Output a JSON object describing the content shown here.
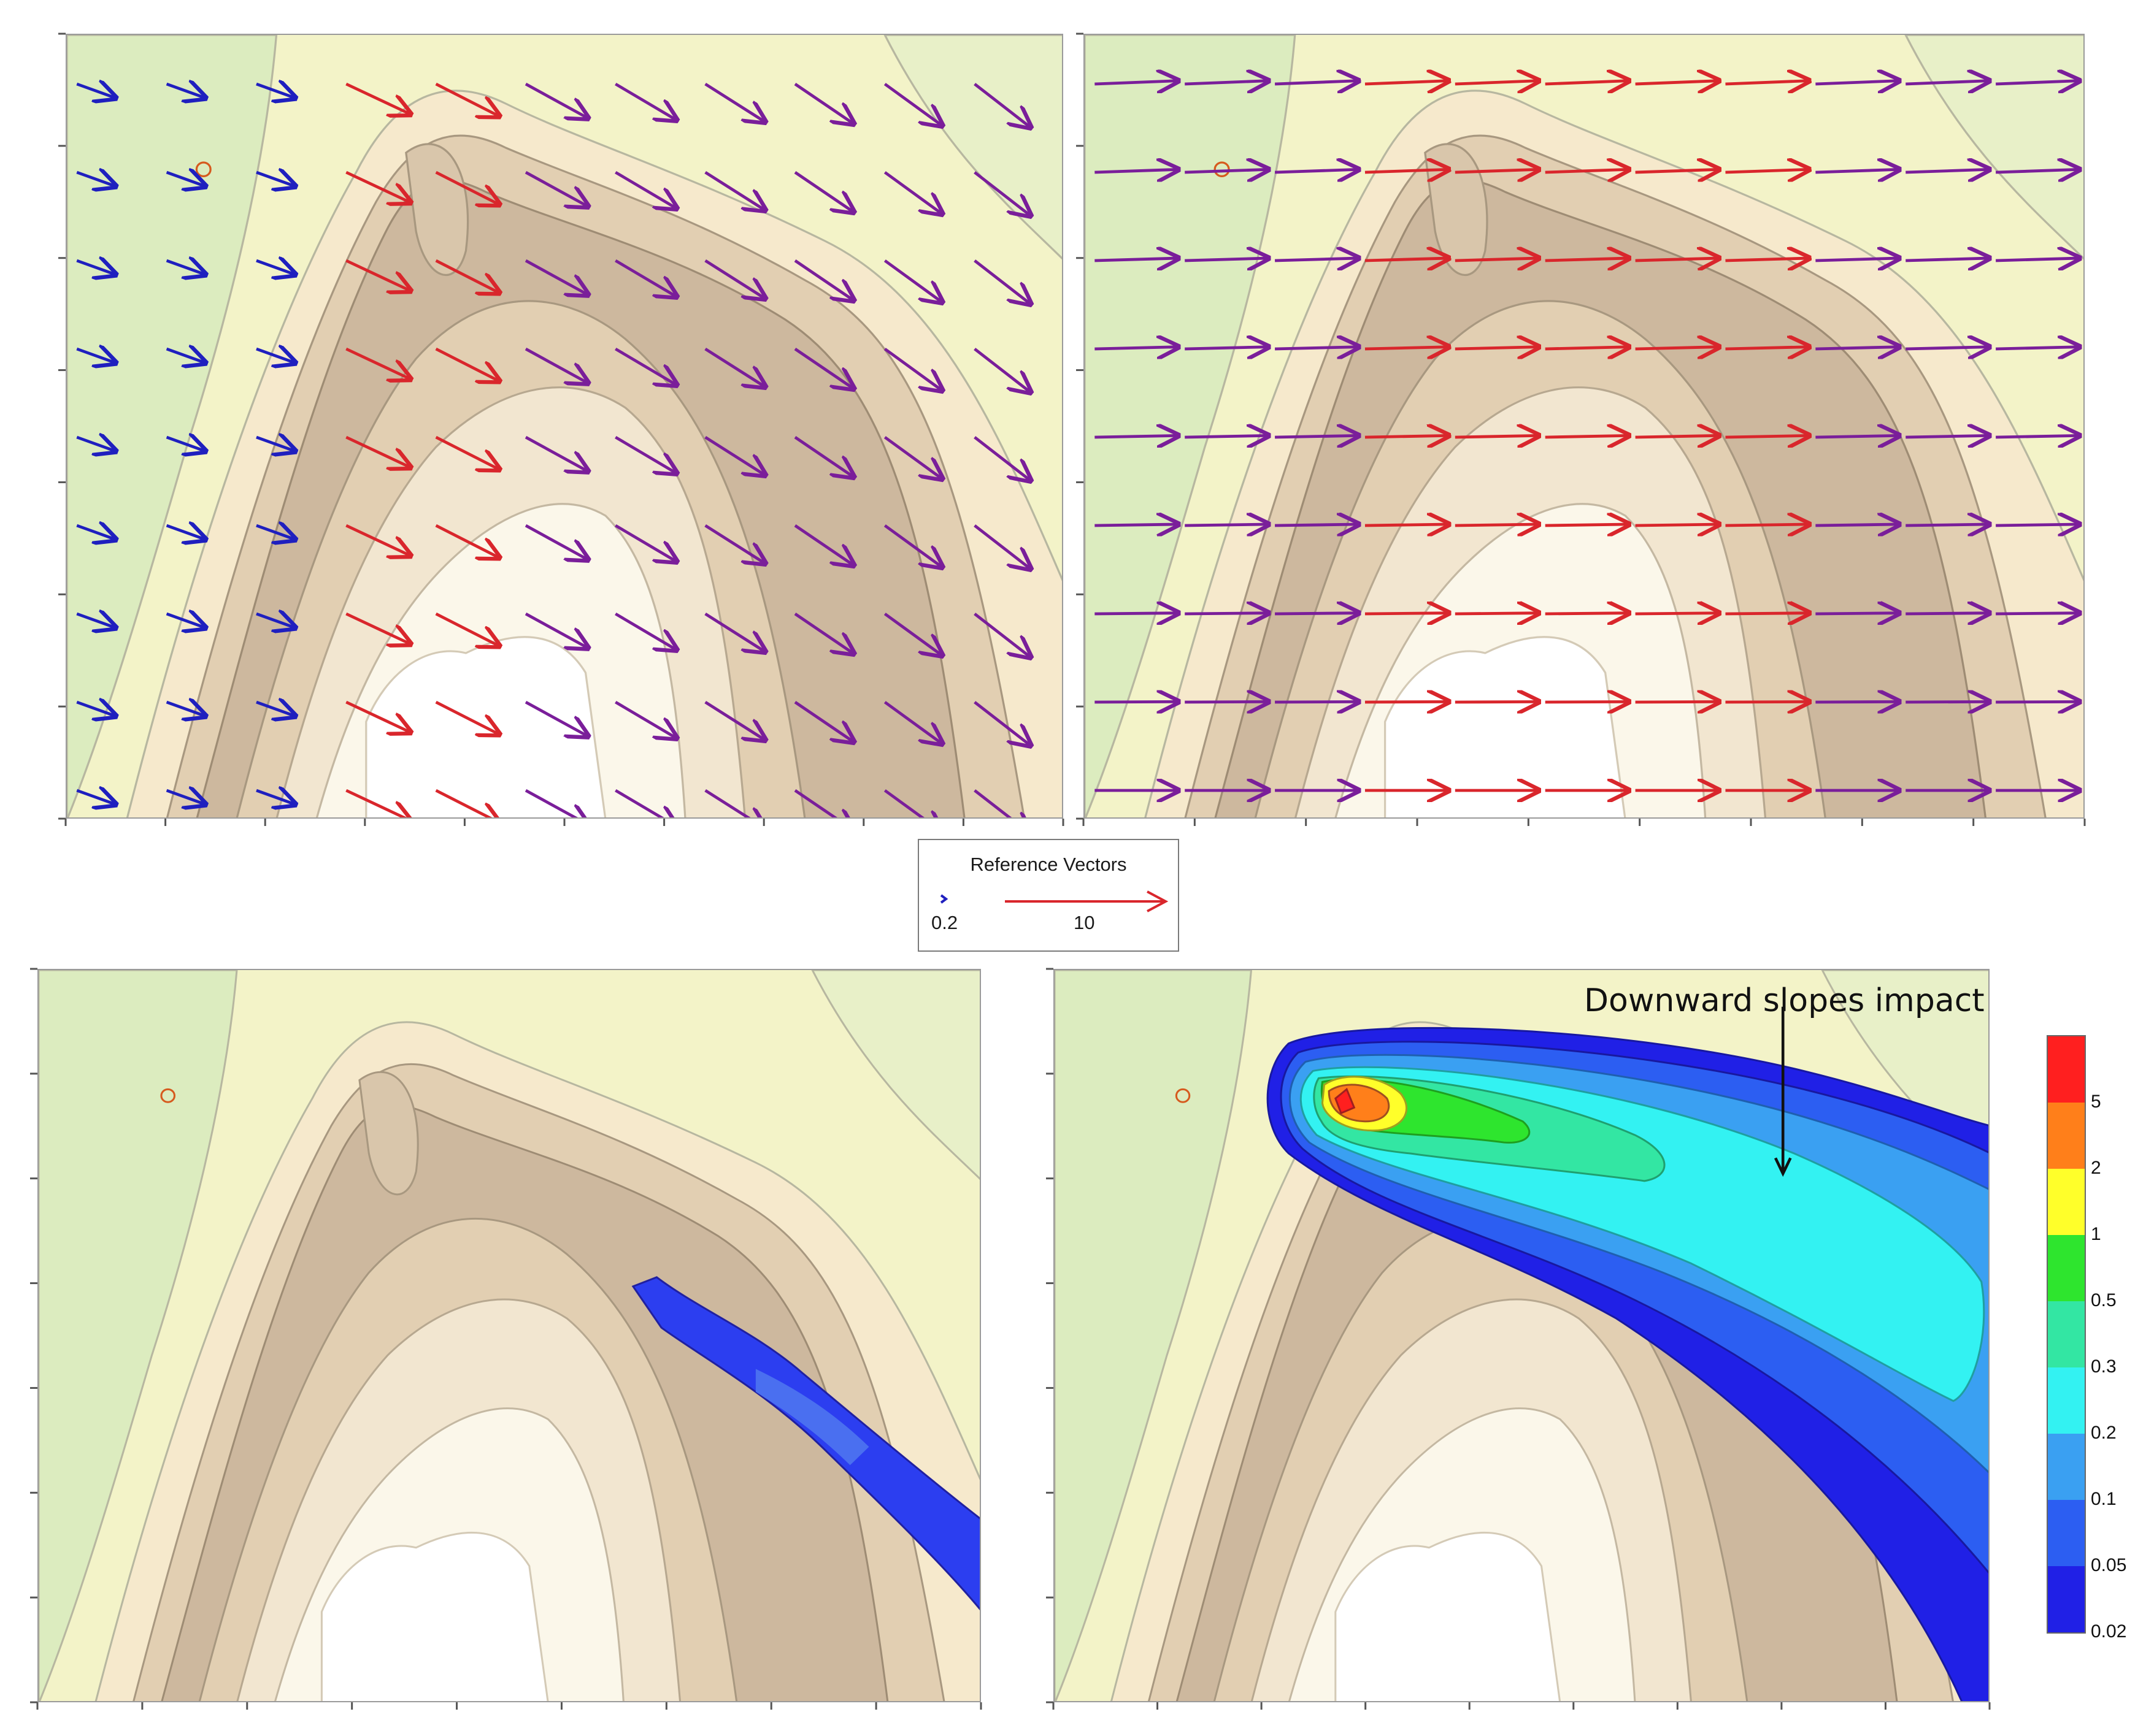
{
  "legend": {
    "title": "Reference Vectors",
    "small_label": "0.2",
    "large_label": "10",
    "small_color": "#1f1fbf",
    "large_color": "#d9262c"
  },
  "annotation": "Downward slopes impact",
  "colorbar": {
    "labels": [
      "5",
      "2",
      "1",
      "0.5",
      "0.3",
      "0.2",
      "0.1",
      "0.05",
      "0.02"
    ],
    "colors": [
      "#ff1f1f",
      "#ff7f1a",
      "#ffff2a",
      "#2ee52e",
      "#33e6a3",
      "#33f2f2",
      "#3aa0f2",
      "#2c5ef2",
      "#2020e6"
    ]
  },
  "terrain_colors": {
    "valley": "#dcecbf",
    "lowland": "#f3f3c8",
    "slope_light": "#f6e9cc",
    "slope_mid": "#e2cfb2",
    "ridge": "#cdb89e",
    "plateau": "#fbf7ea"
  },
  "source_marker_color": "#d65a1e",
  "panels": [
    {
      "id": "p1",
      "content": "terrain-following wind vectors"
    },
    {
      "id": "p2",
      "content": "uniform eastward wind vectors"
    },
    {
      "id": "p3",
      "content": "concentration plume along ridge"
    },
    {
      "id": "p4",
      "content": "concentration plume from source"
    }
  ]
}
